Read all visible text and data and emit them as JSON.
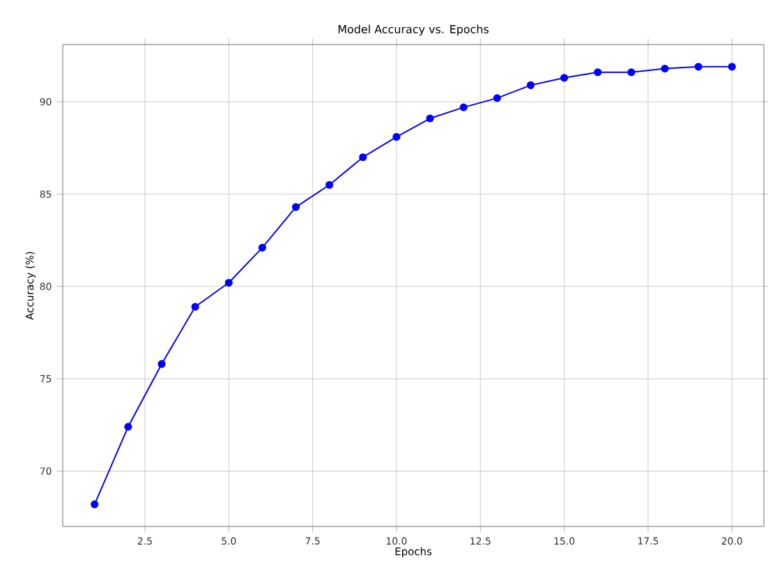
{
  "chart_data": {
    "type": "line",
    "title": "Model Accuracy vs. Epochs",
    "xlabel": "Epochs",
    "ylabel": "Accuracy (%)",
    "x": [
      1,
      2,
      3,
      4,
      5,
      6,
      7,
      8,
      9,
      10,
      11,
      12,
      13,
      14,
      15,
      16,
      17,
      18,
      19,
      20
    ],
    "series": [
      {
        "color": "#0000ff",
        "values": [
          68.2,
          72.4,
          75.8,
          78.9,
          80.2,
          82.1,
          84.3,
          85.5,
          87.0,
          88.1,
          89.1,
          89.7,
          90.2,
          90.9,
          91.3,
          91.6,
          91.6,
          91.8,
          91.9,
          91.9
        ]
      }
    ],
    "xlim": [
      0.05,
      20.95
    ],
    "ylim": [
      67.0,
      93.1
    ],
    "xticks": [
      {
        "value": 2.5,
        "label": "2.5"
      },
      {
        "value": 5,
        "label": "5.0"
      },
      {
        "value": 7.5,
        "label": "7.5"
      },
      {
        "value": 10,
        "label": "10.0"
      },
      {
        "value": 12.5,
        "label": "12.5"
      },
      {
        "value": 15,
        "label": "15.0"
      },
      {
        "value": 17.5,
        "label": "17.5"
      },
      {
        "value": 20,
        "label": "20.0"
      }
    ],
    "yticks": [
      70,
      75,
      80,
      85,
      90
    ],
    "grid": true,
    "marker": "circle",
    "line_style": "solid"
  }
}
